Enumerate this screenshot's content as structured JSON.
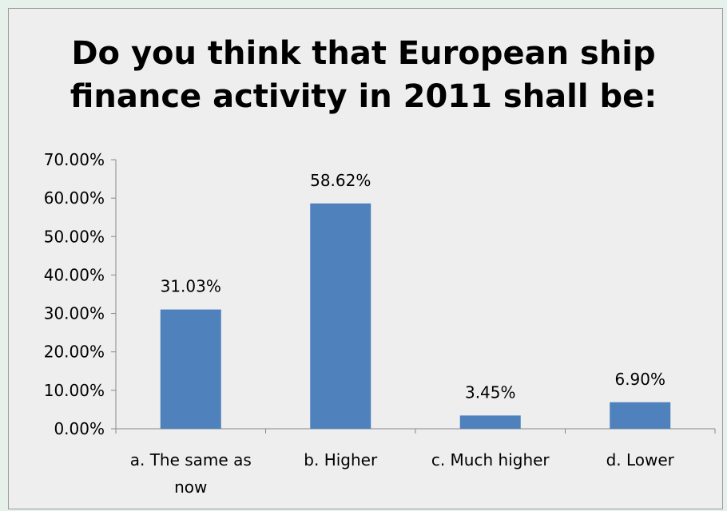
{
  "chart_data": {
    "type": "bar",
    "title": "Do you think that European ship finance activity in 2011 shall be:",
    "title_lines": [
      "Do you think that European ship",
      "finance activity in 2011 shall be:"
    ],
    "categories": [
      "a. The same as now",
      "b. Higher",
      "c. Much higher",
      "d. Lower"
    ],
    "category_lines": [
      [
        "a. The same as",
        "now"
      ],
      [
        "b. Higher"
      ],
      [
        "c. Much higher"
      ],
      [
        "d. Lower"
      ]
    ],
    "values": [
      31.03,
      58.62,
      3.45,
      6.9
    ],
    "data_labels": [
      "31.03%",
      "58.62%",
      "3.45%",
      "6.90%"
    ],
    "y_ticks": [
      "0.00%",
      "10.00%",
      "20.00%",
      "30.00%",
      "40.00%",
      "50.00%",
      "60.00%",
      "70.00%"
    ],
    "ylim": [
      0,
      70
    ],
    "grid": false,
    "legend": "none",
    "bar_color": "#4f81bd"
  }
}
